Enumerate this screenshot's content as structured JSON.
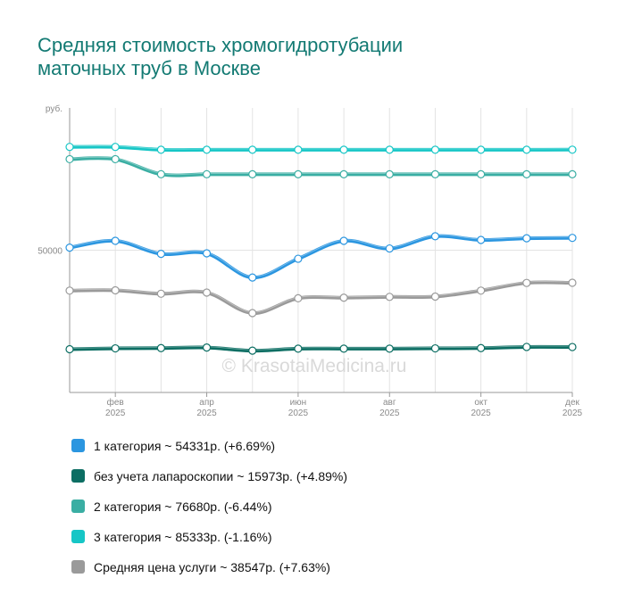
{
  "title_lines": [
    "Средняя стоимость хромогидротубации",
    "маточных труб в Москве"
  ],
  "watermark": "© KrasotaiMedicina.ru",
  "chart_data": {
    "type": "line",
    "title": "Средняя стоимость хромогидротубации маточных труб в Москве",
    "ylabel": "руб.",
    "ylim": [
      0,
      100000
    ],
    "yticks": [
      {
        "value": 50000,
        "label": "50000"
      }
    ],
    "x_points": 12,
    "x_ticks": [
      {
        "index": 1,
        "month": "фев",
        "year": "2025"
      },
      {
        "index": 3,
        "month": "апр",
        "year": "2025"
      },
      {
        "index": 5,
        "month": "июн",
        "year": "2025"
      },
      {
        "index": 7,
        "month": "авг",
        "year": "2025"
      },
      {
        "index": 9,
        "month": "окт",
        "year": "2025"
      },
      {
        "index": 11,
        "month": "дек",
        "year": "2025"
      }
    ],
    "series": [
      {
        "name": "3 категория",
        "color": "#16c6c6",
        "values": [
          86300,
          86300,
          85300,
          85300,
          85300,
          85300,
          85300,
          85300,
          85300,
          85300,
          85300,
          85333
        ]
      },
      {
        "name": "2 категория",
        "color": "#3aaea3",
        "values": [
          82000,
          82000,
          76700,
          76700,
          76680,
          76680,
          76680,
          76680,
          76680,
          76680,
          76680,
          76680
        ]
      },
      {
        "name": "1 категория",
        "color": "#2b96e0",
        "values": [
          50900,
          53300,
          48700,
          48900,
          40400,
          47000,
          53300,
          50600,
          54900,
          53600,
          54200,
          54331
        ]
      },
      {
        "name": "Средняя цена услуги",
        "color": "#9a9a9a",
        "values": [
          35800,
          35900,
          34700,
          35100,
          27900,
          33100,
          33300,
          33600,
          33700,
          35800,
          38500,
          38547
        ]
      },
      {
        "name": "без учета лапароскопии",
        "color": "#0c6e63",
        "values": [
          15200,
          15500,
          15600,
          15800,
          14700,
          15400,
          15400,
          15400,
          15500,
          15600,
          16000,
          15973
        ]
      }
    ]
  },
  "legend": [
    {
      "label": "1 категория ~ 54331р. (+6.69%)",
      "color": "#2b96e0"
    },
    {
      "label": "без учета лапароскопии ~ 15973р. (+4.89%)",
      "color": "#0c6e63"
    },
    {
      "label": "2 категория ~ 76680р. (-6.44%)",
      "color": "#3aaea3"
    },
    {
      "label": "3 категория ~ 85333р. (-1.16%)",
      "color": "#16c6c6"
    },
    {
      "label": "Средняя цена услуги ~ 38547р. (+7.63%)",
      "color": "#9a9a9a"
    }
  ]
}
